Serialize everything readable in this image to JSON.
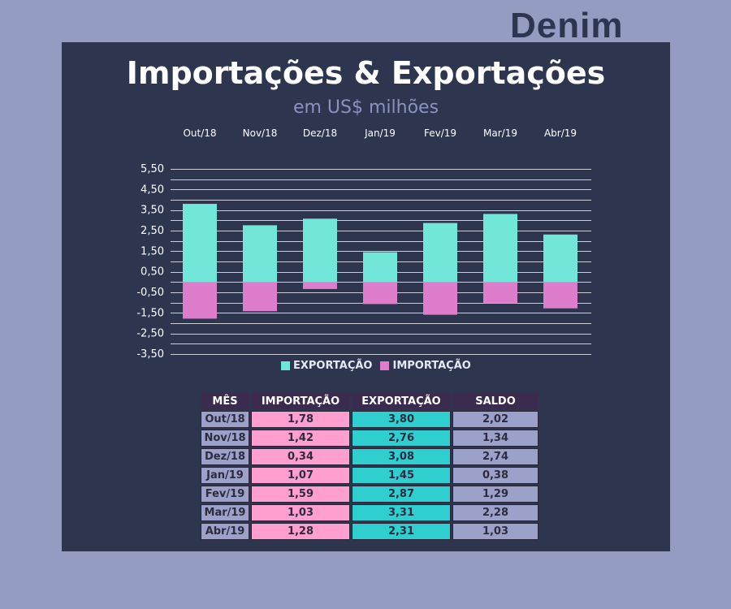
{
  "brand": "Denim",
  "title": "Importações & Exportações",
  "subtitle": "em US$ milhões",
  "colors": {
    "exportacao": "#72e6d9",
    "importacao": "#de7dcc",
    "gridline": "#e8e8ee",
    "axis_text": "#ffffff"
  },
  "chart_data": {
    "type": "bar",
    "stacked": true,
    "categories": [
      "Out/18",
      "Nov/18",
      "Dez/18",
      "Jan/19",
      "Fev/19",
      "Mar/19",
      "Abr/19"
    ],
    "series": [
      {
        "name": "EXPORTAÇÃO",
        "values": [
          3.8,
          2.76,
          3.08,
          1.45,
          2.87,
          3.31,
          2.31
        ]
      },
      {
        "name": "IMPORTAÇÃO",
        "values": [
          -1.78,
          -1.42,
          -0.34,
          -1.07,
          -1.59,
          -1.03,
          -1.28
        ]
      }
    ],
    "yticks": [
      "5,50",
      "4,50",
      "3,50",
      "2,50",
      "1,50",
      "0,50",
      "-0,50",
      "-1,50",
      "-2,50",
      "-3,50"
    ],
    "ylim": [
      -3.5,
      5.5
    ],
    "grid_step": 0.5,
    "legend_position": "bottom",
    "category_axis_position": "top"
  },
  "legend": [
    {
      "label": "EXPORTAÇÃO",
      "color": "#72e6d9"
    },
    {
      "label": "IMPORTAÇÃO",
      "color": "#de7dcc"
    }
  ],
  "table": {
    "headers": [
      "MÊS",
      "IMPORTAÇÃO",
      "EXPORTAÇÃO",
      "SALDO"
    ],
    "rows": [
      [
        "Out/18",
        "1,78",
        "3,80",
        "2,02"
      ],
      [
        "Nov/18",
        "1,42",
        "2,76",
        "1,34"
      ],
      [
        "Dez/18",
        "0,34",
        "3,08",
        "2,74"
      ],
      [
        "Jan/19",
        "1,07",
        "1,45",
        "0,38"
      ],
      [
        "Fev/19",
        "1,59",
        "2,87",
        "1,29"
      ],
      [
        "Mar/19",
        "1,03",
        "3,31",
        "2,28"
      ],
      [
        "Abr/19",
        "1,28",
        "2,31",
        "1,03"
      ]
    ]
  }
}
